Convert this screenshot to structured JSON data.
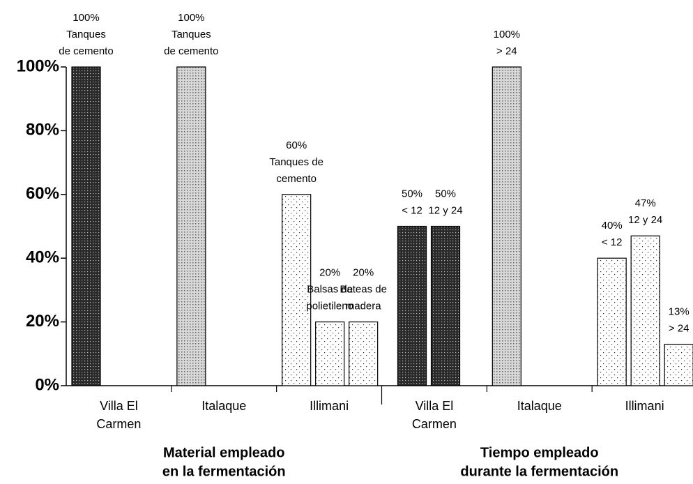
{
  "chart_data": {
    "type": "bar",
    "ylim": [
      0,
      100
    ],
    "yticks": [
      {
        "value": 0,
        "label": "0%"
      },
      {
        "value": 20,
        "label": "20%"
      },
      {
        "value": 40,
        "label": "40%"
      },
      {
        "value": 60,
        "label": "60%"
      },
      {
        "value": 80,
        "label": "80%"
      },
      {
        "value": 100,
        "label": "100%"
      }
    ],
    "groups": [
      {
        "title": [
          "Material empleado",
          "en la fermentación"
        ],
        "categories": [
          {
            "name": [
              "Villa El",
              "Carmen"
            ],
            "pattern": "dark",
            "bars": [
              {
                "value": 100,
                "value_label": "100%",
                "label": [
                  "Tanques",
                  "de cemento"
                ]
              }
            ]
          },
          {
            "name": [
              "Italaque"
            ],
            "pattern": "light",
            "bars": [
              {
                "value": 100,
                "value_label": "100%",
                "label": [
                  "Tanques",
                  "de cemento"
                ]
              }
            ]
          },
          {
            "name": [
              "Illimani"
            ],
            "pattern": "dots",
            "bars": [
              {
                "value": 60,
                "value_label": "60%",
                "label": [
                  "Tanques de",
                  "cemento"
                ]
              },
              {
                "value": 20,
                "value_label": "20%",
                "label": [
                  "Balsas de",
                  "polietileno"
                ]
              },
              {
                "value": 20,
                "value_label": "20%",
                "label": [
                  "Bateas de",
                  "madera"
                ]
              }
            ]
          }
        ]
      },
      {
        "title": [
          "Tiempo empleado",
          "durante la fermentación"
        ],
        "categories": [
          {
            "name": [
              "Villa El",
              "Carmen"
            ],
            "pattern": "dark",
            "bars": [
              {
                "value": 50,
                "value_label": "50%",
                "label": [
                  "< 12"
                ]
              },
              {
                "value": 50,
                "value_label": "50%",
                "label": [
                  "12 y 24"
                ]
              }
            ]
          },
          {
            "name": [
              "Italaque"
            ],
            "pattern": "light",
            "bars": [
              {
                "value": 100,
                "value_label": "100%",
                "label": [
                  "> 24"
                ]
              }
            ]
          },
          {
            "name": [
              "Illimani"
            ],
            "pattern": "dots",
            "bars": [
              {
                "value": 40,
                "value_label": "40%",
                "label": [
                  "< 12"
                ]
              },
              {
                "value": 47,
                "value_label": "47%",
                "label": [
                  "12 y 24"
                ]
              },
              {
                "value": 13,
                "value_label": "13%",
                "label": [
                  "> 24"
                ]
              }
            ]
          }
        ]
      }
    ]
  }
}
